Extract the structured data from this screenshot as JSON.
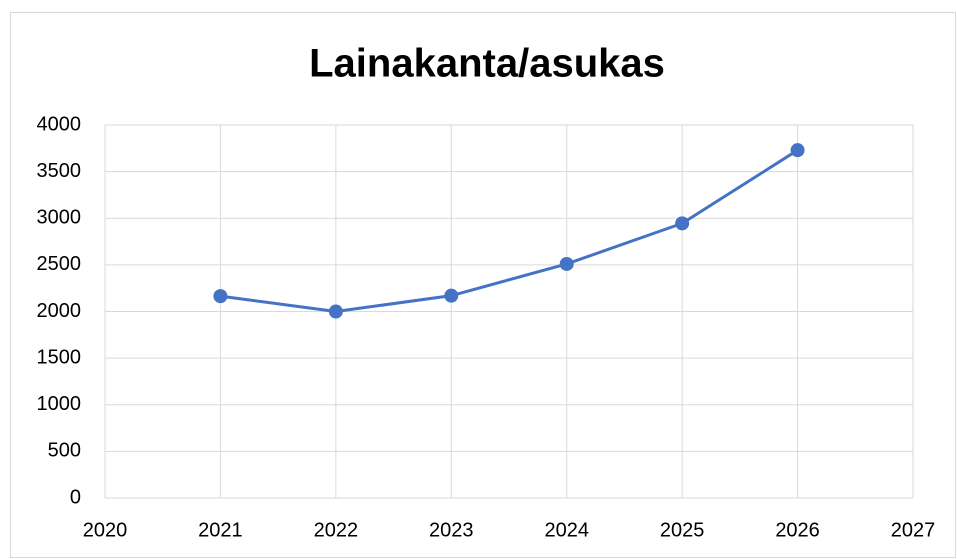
{
  "chart_data": {
    "type": "line",
    "title": "Lainakanta/asukas",
    "x": [
      2021,
      2022,
      2023,
      2024,
      2025,
      2026
    ],
    "series": [
      {
        "name": "Lainakanta/asukas",
        "color": "#4472c4",
        "values": [
          2165,
          2000,
          2170,
          2510,
          2945,
          3730
        ]
      }
    ],
    "xlim": [
      2020,
      2027
    ],
    "xticks": [
      2020,
      2021,
      2022,
      2023,
      2024,
      2025,
      2026,
      2027
    ],
    "ylim": [
      0,
      4000
    ],
    "yticks": [
      0,
      500,
      1000,
      1500,
      2000,
      2500,
      3000,
      3500,
      4000
    ],
    "grid": true
  }
}
